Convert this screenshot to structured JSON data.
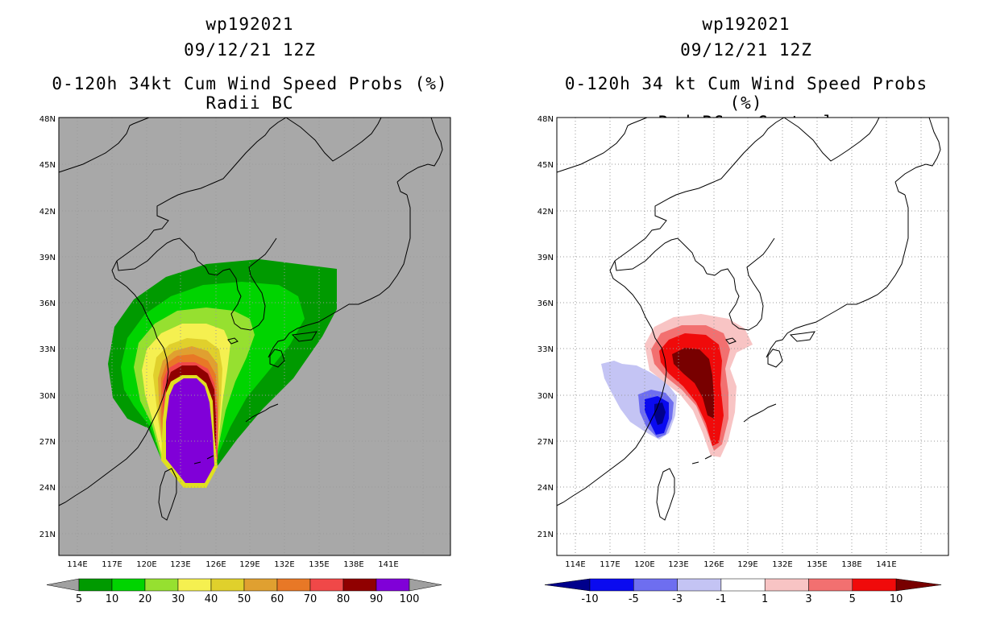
{
  "left_panel": {
    "title_lines": [
      "wp192021",
      "09/12/21 12Z",
      "0-120h 34kt Cum Wind Speed Probs (%)",
      "Radii BC"
    ],
    "lat_ticks": [
      "48N",
      "45N",
      "42N",
      "39N",
      "36N",
      "33N",
      "30N",
      "27N",
      "24N",
      "21N"
    ],
    "lon_ticks": [
      "114E",
      "117E",
      "120E",
      "123E",
      "126E",
      "129E",
      "132E",
      "135E",
      "138E",
      "141E"
    ],
    "colorbar": {
      "labels": [
        "5",
        "10",
        "20",
        "30",
        "40",
        "50",
        "60",
        "70",
        "80",
        "90",
        "100"
      ],
      "colors": [
        "#a0a0a0",
        "#009a00",
        "#00d400",
        "#96e030",
        "#f5f050",
        "#e0d02c",
        "#e0a030",
        "#e87826",
        "#f04848",
        "#900000",
        "#8000d8",
        "#a0a0a0"
      ]
    }
  },
  "right_panel": {
    "title_lines": [
      "wp192021",
      "09/12/21 12Z",
      "0-120h 34 kt Cum Wind Speed Probs (%)",
      "Rad BC - Control"
    ],
    "lat_ticks": [
      "48N",
      "45N",
      "42N",
      "39N",
      "36N",
      "33N",
      "30N",
      "27N",
      "24N",
      "21N"
    ],
    "lon_ticks": [
      "114E",
      "117E",
      "120E",
      "123E",
      "126E",
      "129E",
      "132E",
      "135E",
      "138E",
      "141E"
    ],
    "colorbar": {
      "labels": [
        "-10",
        "-5",
        "-3",
        "-1",
        "1",
        "3",
        "5",
        "10"
      ],
      "colors": [
        "#00008c",
        "#0a0af0",
        "#6e6ef0",
        "#c4c4f4",
        "#ffffff",
        "#f8c4c4",
        "#f27070",
        "#f00a0a",
        "#780000"
      ]
    }
  },
  "colors": {
    "land_background_left": "#a8a8a8",
    "coastline": "#000000",
    "grid": "#9a9a9a"
  }
}
